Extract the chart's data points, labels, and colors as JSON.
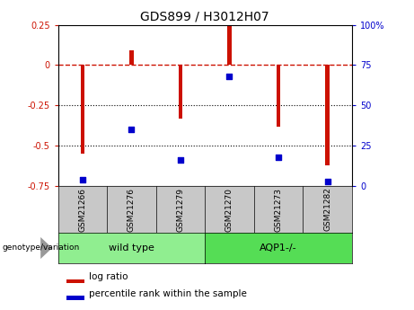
{
  "title": "GDS899 / H3012H07",
  "samples": [
    "GSM21266",
    "GSM21276",
    "GSM21279",
    "GSM21270",
    "GSM21273",
    "GSM21282"
  ],
  "log_ratio": [
    -0.55,
    0.09,
    -0.33,
    0.25,
    -0.38,
    -0.62
  ],
  "percentile_rank": [
    4,
    35,
    16,
    68,
    18,
    3
  ],
  "bar_color": "#CC1100",
  "dot_color": "#0000CC",
  "ylim_left": [
    -0.75,
    0.25
  ],
  "ylim_right": [
    0,
    100
  ],
  "yticks_left": [
    -0.75,
    -0.5,
    -0.25,
    0,
    0.25
  ],
  "yticks_right": [
    0,
    25,
    50,
    75,
    100
  ],
  "dotted_lines": [
    -0.25,
    -0.5
  ],
  "bar_width": 0.08,
  "legend_log_ratio": "log ratio",
  "legend_percentile": "percentile rank within the sample",
  "group_label": "genotype/variation",
  "sample_box_color": "#C8C8C8",
  "group_defs": [
    {
      "label": "wild type",
      "start": 0,
      "end": 3,
      "color": "#90EE90"
    },
    {
      "label": "AQP1-/-",
      "start": 3,
      "end": 6,
      "color": "#55DD55"
    }
  ],
  "title_fontsize": 10,
  "tick_fontsize": 7,
  "legend_fontsize": 7.5,
  "sample_fontsize": 6.5,
  "group_fontsize": 8
}
